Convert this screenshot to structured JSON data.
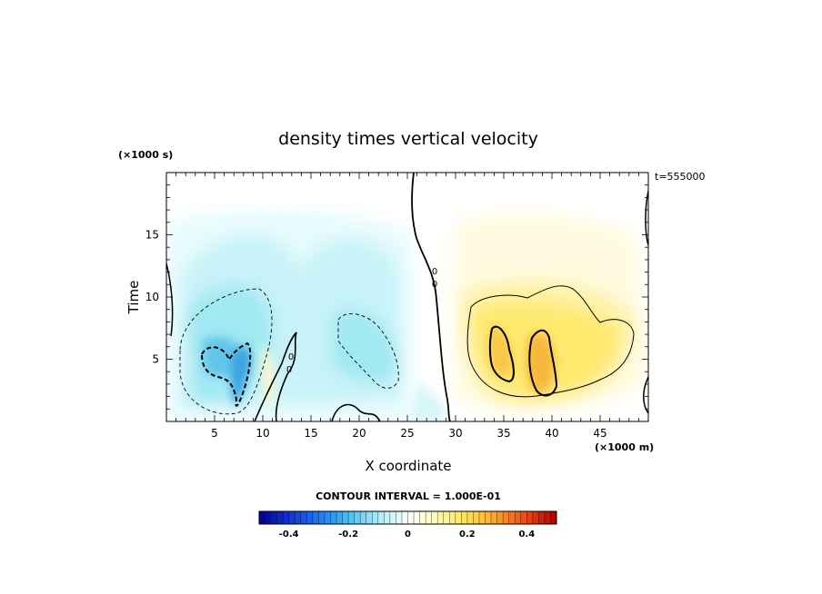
{
  "chart_data": {
    "type": "heatmap",
    "title": "density times vertical velocity",
    "xlabel": "X coordinate",
    "ylabel": "Time",
    "x_unit": "(×1000 m)",
    "y_unit": "(×1000 s)",
    "time_label": "t=555000",
    "xlim": [
      0,
      50
    ],
    "ylim": [
      0,
      20
    ],
    "x_ticks": [
      5,
      10,
      15,
      20,
      25,
      30,
      35,
      40,
      45
    ],
    "y_ticks": [
      5,
      10,
      15
    ],
    "contour_interval_label": "CONTOUR INTERVAL = 1.000E-01",
    "contour_labels": [
      "0",
      "0",
      "0",
      "0"
    ],
    "colorbar": {
      "min": -0.5,
      "max": 0.5,
      "tick_values": [
        -0.4,
        -0.2,
        0,
        0.2,
        0.4
      ],
      "tick_labels": [
        "-0.4",
        "-0.2",
        "0",
        "0.2",
        "0.4"
      ]
    },
    "features": [
      {
        "sign": "negative",
        "center": [
          7,
          4.5
        ],
        "peak": -0.25
      },
      {
        "sign": "negative",
        "center": [
          20,
          5.5
        ],
        "peak": -0.15
      },
      {
        "sign": "positive",
        "center": [
          35,
          5.5
        ],
        "peak": 0.25
      },
      {
        "sign": "positive",
        "center": [
          38.5,
          5.0
        ],
        "peak": 0.25
      }
    ]
  }
}
